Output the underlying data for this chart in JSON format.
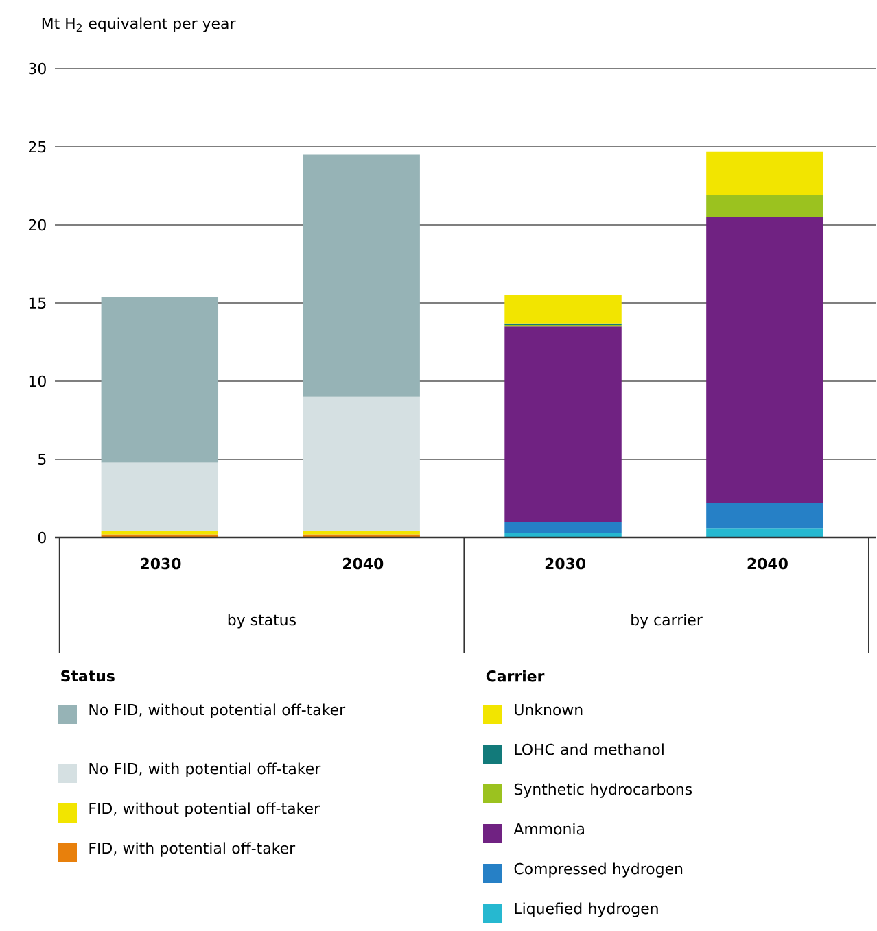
{
  "chart_data": {
    "type": "bar",
    "stacked": true,
    "ylabel": "Mt H$_{2}$ equivalent per year",
    "categories": [
      "2030",
      "2040",
      "2030",
      "2040"
    ],
    "ylim": [
      0,
      30
    ],
    "yticks": [
      0,
      5,
      10,
      15,
      20,
      25,
      30
    ],
    "grid": "y",
    "legend": "bottom",
    "annotations": [
      "by status",
      "by carrier",
      "Status",
      "Carrier"
    ],
    "series": [
      {
        "name": "FID, with potential off-taker",
        "color": "#e8800c",
        "values": [
          0.2,
          0.2,
          null,
          null
        ]
      },
      {
        "name": "FID, without potential off-taker",
        "color": "#f2e500",
        "values": [
          0.2,
          0.2,
          null,
          null
        ]
      },
      {
        "name": "No FID, with potential off-taker",
        "color": "#d5e0e2",
        "values": [
          4.4,
          8.6,
          null,
          null
        ]
      },
      {
        "name": "No FID, without potential off-taker",
        "color": "#96b3b6",
        "values": [
          10.6,
          15.5,
          null,
          null
        ]
      },
      {
        "name": "Liquefied hydrogen",
        "color": "#26b8d0",
        "values": [
          null,
          null,
          0.3,
          0.6
        ]
      },
      {
        "name": "Compressed hydrogen",
        "color": "#2680c6",
        "values": [
          null,
          null,
          0.7,
          1.6
        ]
      },
      {
        "name": "Ammonia",
        "color": "#702282",
        "values": [
          null,
          null,
          12.5,
          18.3
        ]
      },
      {
        "name": "Synthetic hydrocarbons",
        "color": "#9bc21f",
        "values": [
          null,
          null,
          0.1,
          1.4
        ]
      },
      {
        "name": "LOHC and methanol",
        "color": "#127a7a",
        "values": [
          null,
          null,
          0.1,
          0
        ]
      },
      {
        "name": "Unknown",
        "color": "#f2e500",
        "values": [
          null,
          null,
          1.8,
          2.8
        ]
      }
    ]
  }
}
